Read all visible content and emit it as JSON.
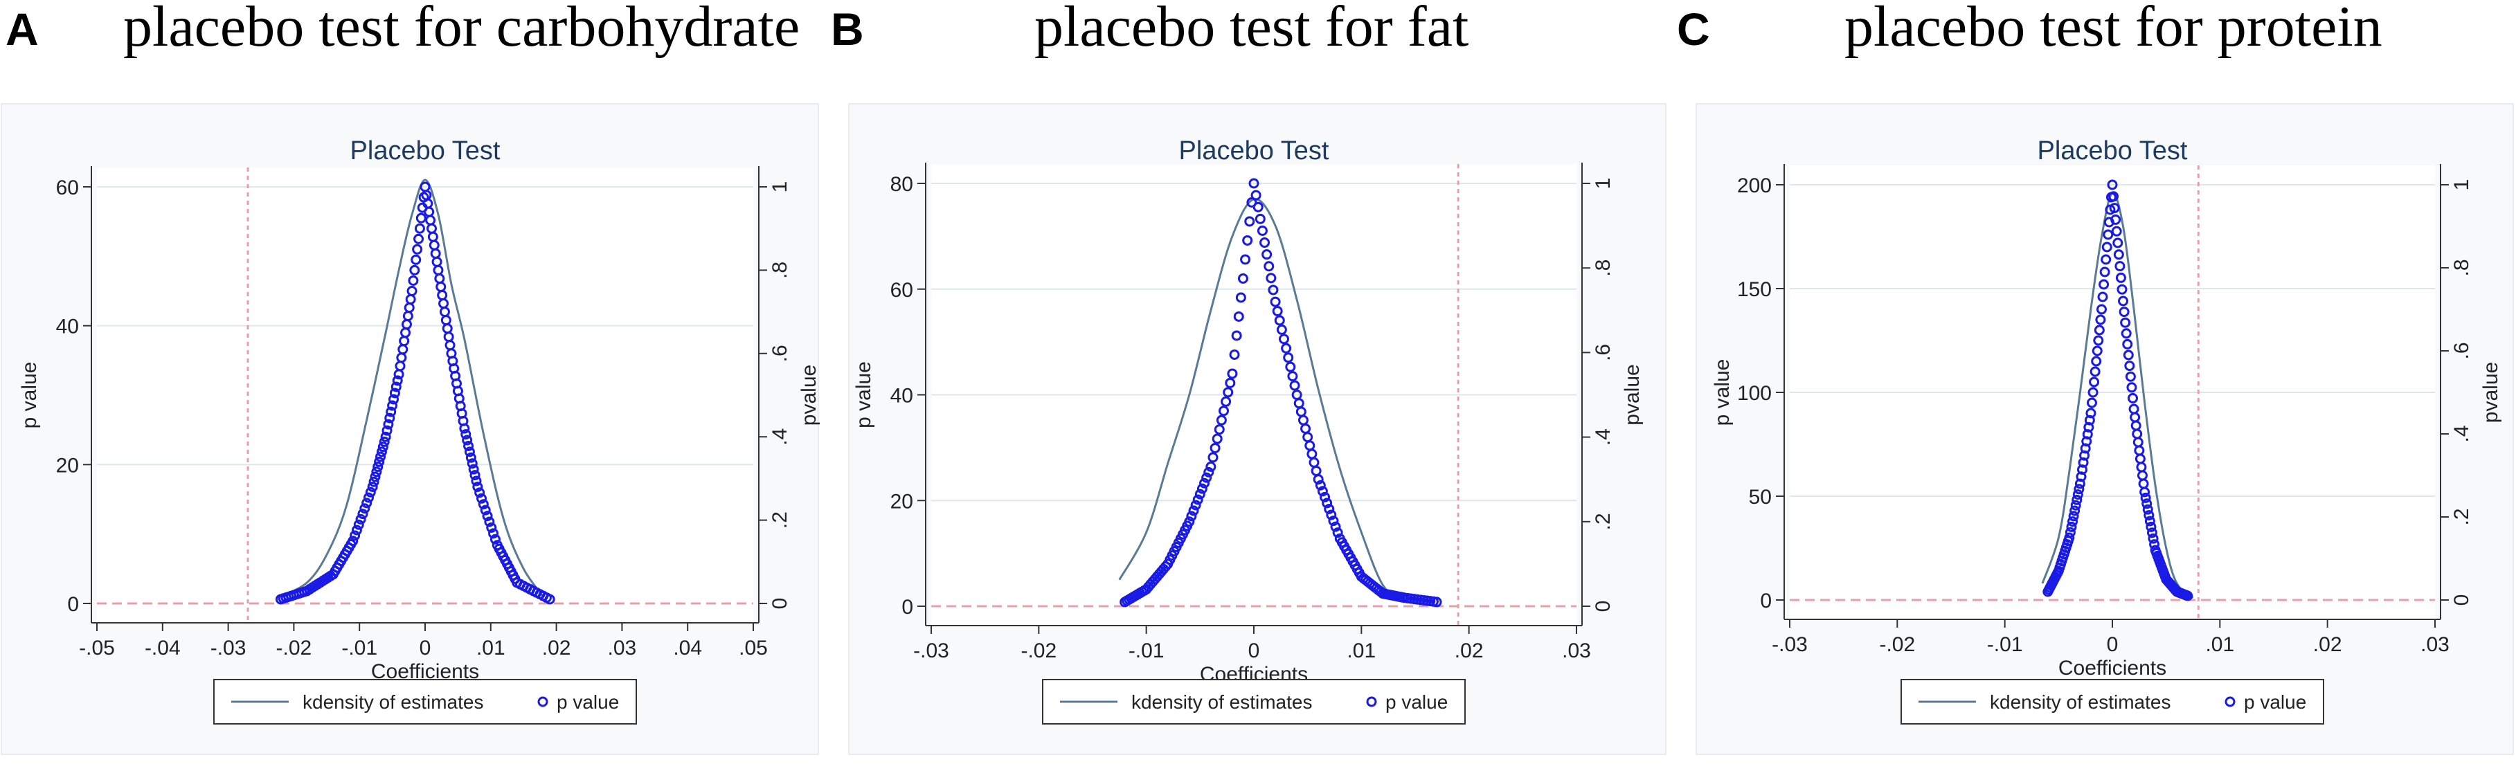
{
  "panels": [
    {
      "letter": "A",
      "caption": "placebo test for carbohydrate"
    },
    {
      "letter": "B",
      "caption": "placebo test for fat"
    },
    {
      "letter": "C",
      "caption": "placebo test for protein"
    }
  ],
  "colors": {
    "kdensity": "#5b7b94",
    "pvalue": "#1a1ae6",
    "ref_line": "#e8a0a8",
    "grid": "#dde7ee",
    "frame_bg": "#f7f9fb"
  },
  "chart_data": [
    {
      "type": "line",
      "title": "Placebo Test",
      "xlabel": "Coefficients",
      "ylabel_left": "p value",
      "ylabel_right": "pvalue",
      "xlim": [
        -0.05,
        0.05
      ],
      "ylim_left": [
        0,
        60
      ],
      "ylim_right": [
        0,
        1
      ],
      "x_ticks": [
        -0.05,
        -0.04,
        -0.03,
        -0.02,
        -0.01,
        0,
        0.01,
        0.02,
        0.03,
        0.04,
        0.05
      ],
      "x_tick_labels": [
        "-.05",
        "-.04",
        "-.03",
        "-.02",
        "-.01",
        "0",
        ".01",
        ".02",
        ".03",
        ".04",
        ".05"
      ],
      "y_left_ticks": [
        0,
        20,
        40,
        60
      ],
      "y_left_tick_labels": [
        "0",
        "20",
        "40",
        "60"
      ],
      "y_right_ticks": [
        0,
        0.2,
        0.4,
        0.6,
        0.8,
        1
      ],
      "y_right_tick_labels": [
        "0",
        ".2",
        ".4",
        ".6",
        ".8",
        "1"
      ],
      "actual_coefficient": -0.027,
      "grid": true,
      "legend_position": "bottom",
      "series": [
        {
          "name": "kdensity of estimates",
          "axis": "left",
          "x": [
            -0.022,
            -0.018,
            -0.015,
            -0.012,
            -0.009,
            -0.006,
            -0.004,
            -0.002,
            0,
            0.002,
            0.004,
            0.006,
            0.009,
            0.012,
            0.015,
            0.018
          ],
          "values": [
            1,
            3,
            7,
            14,
            26,
            39,
            48,
            56,
            61,
            56,
            46,
            38,
            24,
            12,
            5,
            1
          ]
        },
        {
          "name": "p value",
          "axis": "right",
          "x": [
            -0.022,
            -0.018,
            -0.014,
            -0.011,
            -0.008,
            -0.006,
            -0.004,
            -0.002,
            0,
            0.002,
            0.004,
            0.006,
            0.008,
            0.011,
            0.014,
            0.019
          ],
          "values": [
            0.01,
            0.03,
            0.07,
            0.15,
            0.28,
            0.4,
            0.55,
            0.75,
            1.0,
            0.8,
            0.6,
            0.42,
            0.28,
            0.14,
            0.05,
            0.01
          ]
        }
      ]
    },
    {
      "type": "line",
      "title": "Placebo Test",
      "xlabel": "Coefficients",
      "ylabel_left": "p value",
      "ylabel_right": "pvalue",
      "xlim": [
        -0.03,
        0.03
      ],
      "ylim_left": [
        0,
        80
      ],
      "ylim_right": [
        0,
        1
      ],
      "x_ticks": [
        -0.03,
        -0.02,
        -0.01,
        0,
        0.01,
        0.02,
        0.03
      ],
      "x_tick_labels": [
        "-.03",
        "-.02",
        "-.01",
        "0",
        ".01",
        ".02",
        ".03"
      ],
      "y_left_ticks": [
        0,
        20,
        40,
        60,
        80
      ],
      "y_left_tick_labels": [
        "0",
        "20",
        "40",
        "60",
        "80"
      ],
      "y_right_ticks": [
        0,
        0.2,
        0.4,
        0.6,
        0.8,
        1
      ],
      "y_right_tick_labels": [
        "0",
        ".2",
        ".4",
        ".6",
        ".8",
        "1"
      ],
      "actual_coefficient": 0.019,
      "grid": true,
      "legend_position": "bottom",
      "series": [
        {
          "name": "kdensity of estimates",
          "axis": "left",
          "x": [
            -0.0125,
            -0.01,
            -0.008,
            -0.006,
            -0.004,
            -0.002,
            0,
            0.002,
            0.004,
            0.006,
            0.008,
            0.01,
            0.012,
            0.014
          ],
          "values": [
            5,
            14,
            27,
            40,
            56,
            70,
            77,
            72,
            58,
            41,
            26,
            14,
            4,
            1
          ]
        },
        {
          "name": "p value",
          "axis": "right",
          "x": [
            -0.012,
            -0.01,
            -0.008,
            -0.006,
            -0.004,
            -0.002,
            0,
            0.002,
            0.004,
            0.006,
            0.008,
            0.01,
            0.012,
            0.014,
            0.017
          ],
          "values": [
            0.01,
            0.04,
            0.1,
            0.2,
            0.33,
            0.55,
            1.0,
            0.72,
            0.5,
            0.3,
            0.16,
            0.07,
            0.03,
            0.02,
            0.01
          ]
        }
      ]
    },
    {
      "type": "line",
      "title": "Placebo Test",
      "xlabel": "Coefficients",
      "ylabel_left": "p value",
      "ylabel_right": "pvalue",
      "xlim": [
        -0.03,
        0.03
      ],
      "ylim_left": [
        0,
        200
      ],
      "ylim_right": [
        0,
        1
      ],
      "x_ticks": [
        -0.03,
        -0.02,
        -0.01,
        0,
        0.01,
        0.02,
        0.03
      ],
      "x_tick_labels": [
        "-.03",
        "-.02",
        "-.01",
        "0",
        ".01",
        ".02",
        ".03"
      ],
      "y_left_ticks": [
        0,
        50,
        100,
        150,
        200
      ],
      "y_left_tick_labels": [
        "0",
        "50",
        "100",
        "150",
        "200"
      ],
      "y_right_ticks": [
        0,
        0.2,
        0.4,
        0.6,
        0.8,
        1
      ],
      "y_right_tick_labels": [
        "0",
        ".2",
        ".4",
        ".6",
        ".8",
        "1"
      ],
      "actual_coefficient": 0.008,
      "grid": true,
      "legend_position": "bottom",
      "series": [
        {
          "name": "kdensity of estimates",
          "axis": "left",
          "x": [
            -0.0065,
            -0.005,
            -0.004,
            -0.003,
            -0.002,
            -0.001,
            0,
            0.001,
            0.002,
            0.003,
            0.004,
            0.005,
            0.006,
            0.0075
          ],
          "values": [
            8,
            30,
            62,
            100,
            140,
            175,
            196,
            180,
            140,
            95,
            55,
            25,
            8,
            1
          ]
        },
        {
          "name": "p value",
          "axis": "right",
          "x": [
            -0.006,
            -0.005,
            -0.004,
            -0.003,
            -0.002,
            -0.001,
            0,
            0.001,
            0.002,
            0.003,
            0.004,
            0.005,
            0.006,
            0.007
          ],
          "values": [
            0.02,
            0.07,
            0.15,
            0.28,
            0.45,
            0.7,
            1.0,
            0.72,
            0.46,
            0.26,
            0.12,
            0.05,
            0.02,
            0.01
          ]
        }
      ]
    }
  ]
}
